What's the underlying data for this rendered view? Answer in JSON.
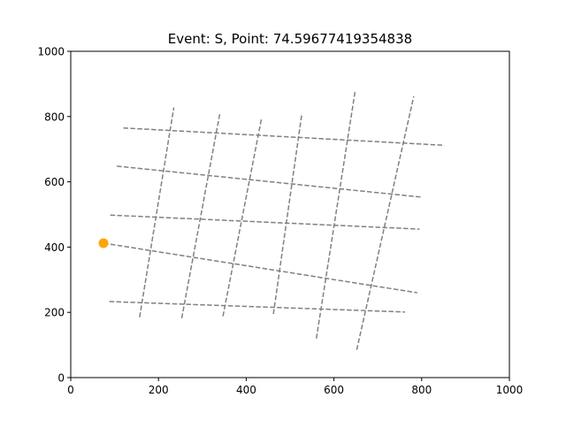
{
  "chart_data": {
    "type": "line",
    "title": "Event: S, Point: 74.59677419354838",
    "xlabel": "",
    "ylabel": "",
    "xlim": [
      0,
      1000
    ],
    "ylim": [
      0,
      1000
    ],
    "xticks": [
      0,
      200,
      400,
      600,
      800,
      1000
    ],
    "yticks": [
      0,
      200,
      400,
      600,
      800,
      1000
    ],
    "xtick_labels": [
      "0",
      "200",
      "400",
      "600",
      "800",
      "1000"
    ],
    "ytick_labels": [
      "0",
      "200",
      "400",
      "600",
      "800",
      "1000"
    ],
    "grid": false,
    "line_color": "#808080",
    "line_style": "dashed",
    "marker_color": "#FFA500",
    "segments": [
      {
        "x": [
          120,
          850
        ],
        "y": [
          765,
          712
        ]
      },
      {
        "x": [
          105,
          800
        ],
        "y": [
          648,
          553
        ]
      },
      {
        "x": [
          90,
          795
        ],
        "y": [
          498,
          455
        ]
      },
      {
        "x": [
          75,
          790
        ],
        "y": [
          412,
          260
        ]
      },
      {
        "x": [
          88,
          762
        ],
        "y": [
          233,
          201
        ]
      },
      {
        "x": [
          157,
          235
        ],
        "y": [
          185,
          828
        ]
      },
      {
        "x": [
          253,
          340
        ],
        "y": [
          182,
          810
        ]
      },
      {
        "x": [
          347,
          435
        ],
        "y": [
          188,
          795
        ]
      },
      {
        "x": [
          462,
          527
        ],
        "y": [
          195,
          810
        ]
      },
      {
        "x": [
          560,
          648
        ],
        "y": [
          120,
          875
        ]
      },
      {
        "x": [
          652,
          782
        ],
        "y": [
          85,
          862
        ]
      }
    ],
    "point": {
      "x": 74.59677419354838,
      "y": 412
    }
  }
}
